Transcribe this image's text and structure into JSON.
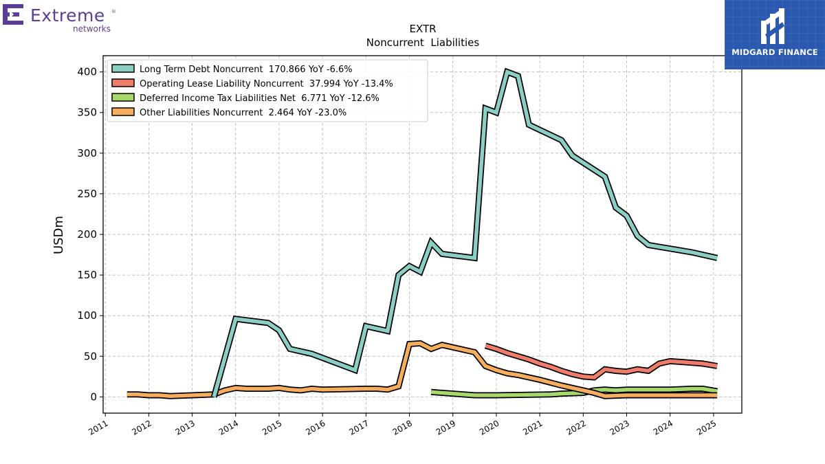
{
  "brand": {
    "company_word": "Extreme",
    "company_sub": "networks",
    "trademark": "®",
    "sponsor_name": "MIDGARD FINANCE"
  },
  "colors": {
    "long_term_debt": "#8bcfc4",
    "operating_lease": "#f07c6c",
    "deferred_tax": "#a7d86b",
    "other_liabilities": "#f6ad5e",
    "sponsor_bg": "#2b59b0",
    "brand_purple": "#5b3f95"
  },
  "chart_data": {
    "type": "line",
    "title": "EXTR",
    "subtitle": "Noncurrent  Liabilities",
    "ylabel": "USDm",
    "xlabel": "",
    "xlim": [
      2010.95,
      2025.65
    ],
    "ylim": [
      -20,
      420
    ],
    "x_ticks": [
      "2011",
      "2012",
      "2013",
      "2014",
      "2015",
      "2016",
      "2017",
      "2018",
      "2019",
      "2020",
      "2021",
      "2022",
      "2023",
      "2024",
      "2025"
    ],
    "y_ticks": [
      "0",
      "50",
      "100",
      "150",
      "200",
      "250",
      "300",
      "350",
      "400"
    ],
    "grid": true,
    "legend_position": "top-left",
    "series": [
      {
        "name": "Long Term Debt Noncurrent  170.866 YoY -6.6%",
        "color_key": "long_term_debt",
        "points": [
          [
            2013.5,
            0
          ],
          [
            2014.0,
            96
          ],
          [
            2014.75,
            91
          ],
          [
            2015.0,
            82
          ],
          [
            2015.25,
            59
          ],
          [
            2015.75,
            53
          ],
          [
            2016.75,
            33
          ],
          [
            2017.0,
            87
          ],
          [
            2017.5,
            81
          ],
          [
            2017.75,
            150
          ],
          [
            2018.0,
            161
          ],
          [
            2018.25,
            154
          ],
          [
            2018.5,
            190
          ],
          [
            2018.75,
            176
          ],
          [
            2019.5,
            171
          ],
          [
            2019.75,
            355
          ],
          [
            2020.0,
            350
          ],
          [
            2020.25,
            400
          ],
          [
            2020.5,
            395
          ],
          [
            2020.75,
            335
          ],
          [
            2021.5,
            316
          ],
          [
            2021.75,
            297
          ],
          [
            2022.5,
            271
          ],
          [
            2022.75,
            233
          ],
          [
            2023.0,
            223
          ],
          [
            2023.25,
            198
          ],
          [
            2023.5,
            187
          ],
          [
            2024.5,
            178
          ],
          [
            2025.083,
            171
          ]
        ]
      },
      {
        "name": "Operating Lease Liability Noncurrent  37.994 YoY -13.4%",
        "color_key": "operating_lease",
        "points": [
          [
            2019.75,
            63
          ],
          [
            2020.0,
            59
          ],
          [
            2020.25,
            54
          ],
          [
            2020.75,
            46
          ],
          [
            2021.0,
            41
          ],
          [
            2021.25,
            37
          ],
          [
            2021.5,
            32
          ],
          [
            2021.75,
            28
          ],
          [
            2022.0,
            25
          ],
          [
            2022.25,
            24
          ],
          [
            2022.5,
            34
          ],
          [
            2022.75,
            32
          ],
          [
            2023.0,
            31
          ],
          [
            2023.25,
            34
          ],
          [
            2023.5,
            32
          ],
          [
            2023.75,
            41
          ],
          [
            2024.0,
            44
          ],
          [
            2024.25,
            43
          ],
          [
            2024.5,
            42
          ],
          [
            2024.75,
            41
          ],
          [
            2025.083,
            38
          ]
        ]
      },
      {
        "name": "Deferred Income Tax Liabilities Net  6.771 YoY -12.6%",
        "color_key": "deferred_tax",
        "points": [
          [
            2018.5,
            6
          ],
          [
            2019.0,
            4
          ],
          [
            2019.5,
            2
          ],
          [
            2020.0,
            2
          ],
          [
            2021.25,
            3
          ],
          [
            2021.5,
            4
          ],
          [
            2022.0,
            5
          ],
          [
            2022.25,
            8
          ],
          [
            2022.5,
            9
          ],
          [
            2022.75,
            8
          ],
          [
            2023.0,
            9
          ],
          [
            2024.0,
            9
          ],
          [
            2024.5,
            10
          ],
          [
            2024.75,
            10
          ],
          [
            2025.083,
            7
          ]
        ]
      },
      {
        "name": "Other Liabilities Noncurrent  2.464 YoY -23.0%",
        "color_key": "other_liabilities",
        "points": [
          [
            2011.5,
            3
          ],
          [
            2011.75,
            3
          ],
          [
            2012.0,
            2
          ],
          [
            2012.25,
            2
          ],
          [
            2012.5,
            1
          ],
          [
            2013.0,
            2
          ],
          [
            2013.5,
            3
          ],
          [
            2013.75,
            8
          ],
          [
            2014.0,
            11
          ],
          [
            2014.25,
            10
          ],
          [
            2014.75,
            10
          ],
          [
            2015.0,
            11
          ],
          [
            2015.25,
            9
          ],
          [
            2015.5,
            8
          ],
          [
            2015.75,
            10
          ],
          [
            2016.0,
            9
          ],
          [
            2017.0,
            10
          ],
          [
            2017.25,
            10
          ],
          [
            2017.5,
            9
          ],
          [
            2017.75,
            13
          ],
          [
            2018.0,
            65
          ],
          [
            2018.25,
            66
          ],
          [
            2018.5,
            59
          ],
          [
            2018.75,
            64
          ],
          [
            2019.5,
            55
          ],
          [
            2019.75,
            38
          ],
          [
            2020.0,
            33
          ],
          [
            2020.25,
            29
          ],
          [
            2020.5,
            27
          ],
          [
            2021.0,
            21
          ],
          [
            2021.5,
            14
          ],
          [
            2022.0,
            8
          ],
          [
            2022.25,
            5
          ],
          [
            2022.5,
            1
          ],
          [
            2023.0,
            2
          ],
          [
            2024.5,
            2
          ],
          [
            2025.083,
            2
          ]
        ]
      }
    ]
  }
}
